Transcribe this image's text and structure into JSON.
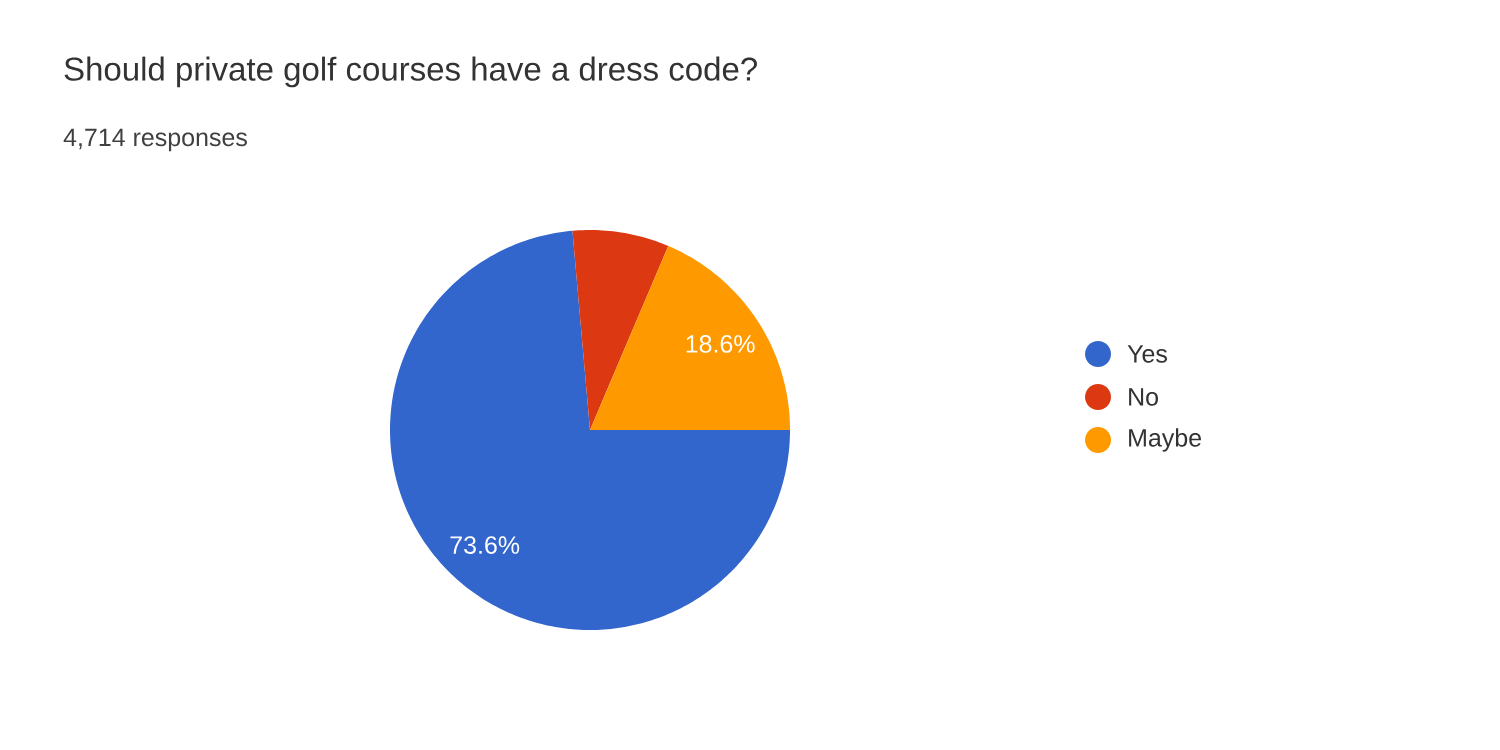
{
  "chart_data": {
    "type": "pie",
    "title": "Should private golf courses have a dress code?",
    "subtitle": "4,714 responses",
    "categories": [
      "Yes",
      "No",
      "Maybe"
    ],
    "values": [
      73.6,
      7.8,
      18.6
    ],
    "value_labels": [
      "73.6%",
      null,
      "18.6%"
    ],
    "colors": [
      "#3366cc",
      "#dc3912",
      "#ff9900"
    ],
    "legend": "right"
  }
}
